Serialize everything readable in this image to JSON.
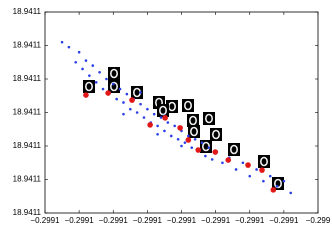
{
  "chart_data": {
    "type": "scatter",
    "xlim": [
      -0.29912,
      -0.29904
    ],
    "ylim": [
      18.94106,
      18.94112
    ],
    "xticks": [
      {
        "value": -0.29912,
        "label": "−0.2991"
      },
      {
        "value": -0.29911,
        "label": "−0.2991"
      },
      {
        "value": -0.2991,
        "label": "−0.2991"
      },
      {
        "value": -0.29909,
        "label": "−0.2991"
      },
      {
        "value": -0.29908,
        "label": "−0.2991"
      },
      {
        "value": -0.29907,
        "label": "−0.2991"
      },
      {
        "value": -0.29906,
        "label": "−0.2991"
      },
      {
        "value": -0.29905,
        "label": "−0.2991"
      },
      {
        "value": -0.29904,
        "label": "−0.299"
      }
    ],
    "yticks": [
      {
        "value": 18.94106,
        "label": "18.9411"
      },
      {
        "value": 18.94107,
        "label": "18.9411"
      },
      {
        "value": 18.94108,
        "label": "18.9411"
      },
      {
        "value": 18.94109,
        "label": "18.9411"
      },
      {
        "value": 18.9411,
        "label": "18.9411"
      },
      {
        "value": 18.94111,
        "label": "18.9411"
      },
      {
        "value": 18.94112,
        "label": "18.9411"
      }
    ],
    "series": [
      {
        "color": "#2a3fe6",
        "x": [
          -0.299115,
          -0.299113,
          -0.299111,
          -0.29911,
          -0.299109,
          -0.299108,
          -0.299107,
          -0.299106,
          -0.299105,
          -0.299104,
          -0.299103,
          -0.299102,
          -0.299101,
          -0.2991,
          -0.299099,
          -0.299098,
          -0.299097,
          -0.299096,
          -0.299095,
          -0.299094,
          -0.299093,
          -0.299092,
          -0.299091,
          -0.29909,
          -0.299089,
          -0.299088,
          -0.299087,
          -0.299086,
          -0.299085,
          -0.299084,
          -0.299083,
          -0.299082,
          -0.299081,
          -0.29908,
          -0.299079,
          -0.299078,
          -0.299077,
          -0.299076,
          -0.299075,
          -0.299074,
          -0.299073,
          -0.299072,
          -0.299071,
          -0.29907,
          -0.299068,
          -0.299066,
          -0.299064,
          -0.299062,
          -0.29906,
          -0.299058,
          -0.299056,
          -0.299054,
          -0.299052,
          -0.29905,
          -0.299048,
          -0.299097,
          -0.299087,
          -0.29908,
          -0.299092,
          -0.299085
        ],
        "values": [
          18.941111,
          18.9411095,
          18.941105,
          18.941108,
          18.941103,
          18.9411055,
          18.941101,
          18.941104,
          18.941099,
          18.941102,
          18.941097,
          18.9411,
          18.941096,
          18.9410985,
          18.941094,
          18.941097,
          18.941093,
          18.9410955,
          18.941091,
          18.941094,
          18.94109,
          18.9410925,
          18.9410885,
          18.941091,
          18.941087,
          18.9410895,
          18.941086,
          18.9410885,
          18.9410845,
          18.941087,
          18.941083,
          18.941086,
          18.941082,
          18.9410845,
          18.941081,
          18.941083,
          18.9410795,
          18.941082,
          18.9410785,
          18.941081,
          18.941077,
          18.9410795,
          18.941076,
          18.9410785,
          18.941075,
          18.9410765,
          18.941073,
          18.941075,
          18.941071,
          18.941073,
          18.9410695,
          18.941071,
          18.941068,
          18.9410695,
          18.941066,
          18.9410895,
          18.9410835,
          18.94108,
          18.941096,
          18.941089
        ]
      },
      {
        "color": "#e01818",
        "x": [
          -0.299108,
          -0.2991015,
          -0.2990945,
          -0.2990892,
          -0.2990848,
          -0.2990804,
          -0.299078,
          -0.2990751,
          -0.2990701,
          -0.2990663,
          -0.2990605,
          -0.2990564,
          -0.2990531
        ],
        "values": [
          18.9410952,
          18.9410958,
          18.9410937,
          18.9410863,
          18.9410884,
          18.9410854,
          18.9410818,
          18.9410788,
          18.9410782,
          18.9410758,
          18.9410743,
          18.9410728,
          18.9410669
        ]
      }
    ]
  }
}
